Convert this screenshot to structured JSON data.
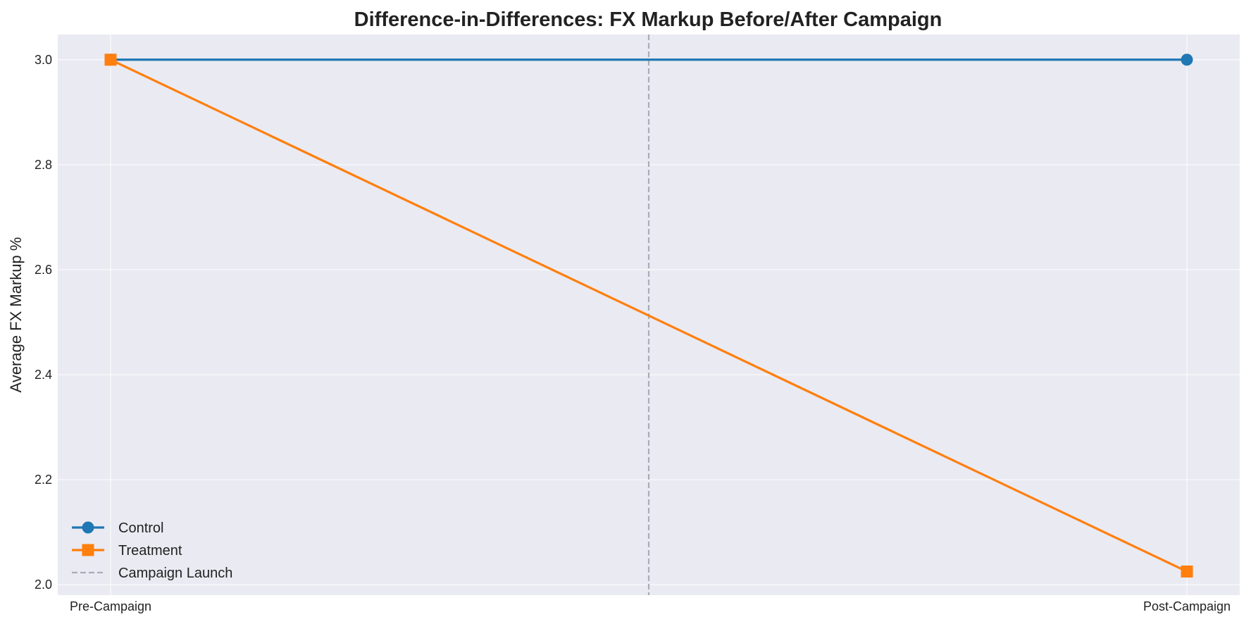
{
  "chart_data": {
    "type": "line",
    "title": "Difference-in-Differences: FX Markup Before/After Campaign",
    "xlabel": "",
    "ylabel": "Average FX Markup %",
    "categories": [
      "Pre-Campaign",
      "Post-Campaign"
    ],
    "ylim": [
      1.98,
      3.048
    ],
    "yticks": [
      "2.0",
      "2.2",
      "2.4",
      "2.6",
      "2.8",
      "3.0"
    ],
    "grid": true,
    "legend_position": "bottom-left",
    "series": [
      {
        "name": "Control",
        "values": [
          3.0,
          3.0
        ],
        "color": "#1f77b4",
        "marker": "circle"
      },
      {
        "name": "Treatment",
        "values": [
          3.0,
          2.025
        ],
        "color": "#ff7f0e",
        "marker": "square"
      }
    ],
    "vlines": [
      {
        "name": "Campaign Launch",
        "x": 0.5,
        "color": "#a9acb6",
        "style": "dashed"
      }
    ],
    "background_color": "#eaeaf2"
  }
}
